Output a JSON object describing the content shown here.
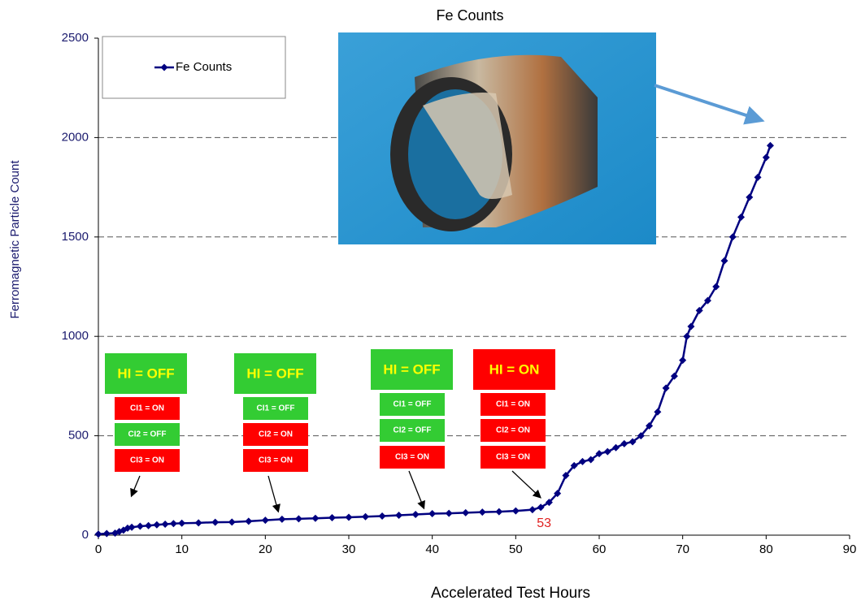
{
  "chart_data": {
    "type": "line",
    "title": "Fe Counts",
    "x_label": "Accelerated Test Hours",
    "y_label": "Ferromagnetic Particle Count",
    "xlim": [
      0,
      90
    ],
    "xticks": [
      0,
      10,
      20,
      30,
      40,
      50,
      60,
      70,
      80,
      90
    ],
    "ylim": [
      0,
      2500
    ],
    "yticks": [
      0,
      500,
      1000,
      1500,
      2000,
      2500
    ],
    "grid": true,
    "legend": "upper left",
    "series": [
      {
        "name": "Fe Counts",
        "color": "#000080",
        "x": [
          0,
          1,
          2,
          2.5,
          3,
          3.5,
          4,
          5,
          6,
          7,
          8,
          9,
          10,
          12,
          14,
          16,
          18,
          20,
          22,
          24,
          26,
          28,
          30,
          32,
          34,
          36,
          38,
          40,
          42,
          44,
          46,
          48,
          50,
          52,
          53,
          54,
          55,
          56,
          57,
          58,
          59,
          60,
          61,
          62,
          63,
          64,
          65,
          66,
          67,
          68,
          69,
          70,
          70.5,
          71,
          72,
          73,
          74,
          75,
          76,
          77,
          78,
          79,
          80,
          80.5
        ],
        "values": [
          5,
          8,
          10,
          18,
          25,
          35,
          40,
          45,
          48,
          52,
          55,
          58,
          60,
          62,
          65,
          66,
          70,
          75,
          80,
          82,
          85,
          88,
          90,
          93,
          96,
          100,
          104,
          108,
          110,
          113,
          116,
          118,
          122,
          128,
          140,
          165,
          210,
          300,
          350,
          370,
          380,
          410,
          420,
          440,
          460,
          470,
          500,
          550,
          620,
          740,
          800,
          880,
          1000,
          1050,
          1130,
          1180,
          1250,
          1380,
          1500,
          1600,
          1700,
          1800,
          1900,
          1960
        ]
      }
    ],
    "x_callout": 53,
    "x_callout_color": "#e02020",
    "annotations": [
      {
        "header": "HI = OFF",
        "color": "#33cc33",
        "items": [
          {
            "text": "CI1 = ON",
            "color": "#ff0000"
          },
          {
            "text": "CI2 = OFF",
            "color": "#33cc33"
          },
          {
            "text": "CI3 = ON",
            "color": "#ff0000"
          }
        ]
      },
      {
        "header": "HI = OFF",
        "color": "#33cc33",
        "items": [
          {
            "text": "CI1 = OFF",
            "color": "#33cc33"
          },
          {
            "text": "CI2 = ON",
            "color": "#ff0000"
          },
          {
            "text": "CI3 = ON",
            "color": "#ff0000"
          }
        ]
      },
      {
        "header": "HI = OFF",
        "color": "#33cc33",
        "items": [
          {
            "text": "CI1 = OFF",
            "color": "#33cc33"
          },
          {
            "text": "CI2 = OFF",
            "color": "#33cc33"
          },
          {
            "text": "CI3 = ON",
            "color": "#ff0000"
          }
        ]
      },
      {
        "header": "HI = ON",
        "color": "#ff0000",
        "items": [
          {
            "text": "CI1 = ON",
            "color": "#ff0000"
          },
          {
            "text": "CI2 = ON",
            "color": "#ff0000"
          },
          {
            "text": "CI3 = ON",
            "color": "#ff0000"
          }
        ]
      }
    ]
  }
}
